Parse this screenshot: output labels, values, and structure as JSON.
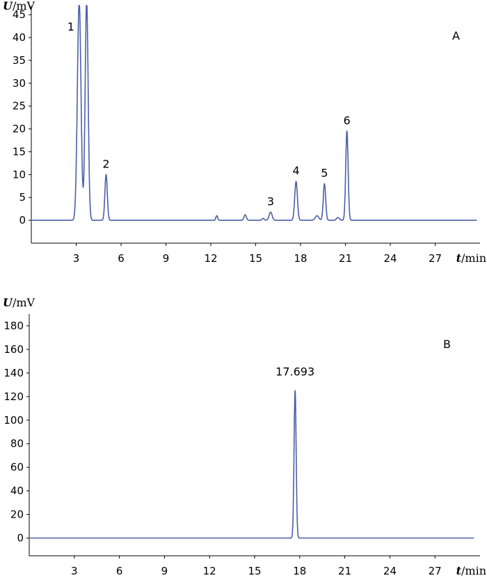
{
  "colors": {
    "trace": "#4a5fa6",
    "axis": "#000000"
  },
  "chart_data": [
    {
      "type": "line",
      "panel_label": "A",
      "ylabel_var": "U",
      "ylabel_unit": "/mV",
      "xlabel_var": "t",
      "xlabel_unit": "/min",
      "xlim": [
        0,
        30
      ],
      "ylim": [
        -5,
        47
      ],
      "x_ticks": [
        3,
        6,
        9,
        12,
        15,
        18,
        21,
        24,
        27
      ],
      "y_ticks": [
        0,
        5,
        10,
        15,
        20,
        25,
        30,
        35,
        40,
        45
      ],
      "peaks": [
        {
          "label": "1",
          "x": 3.2,
          "y": 48,
          "width": 0.12
        },
        {
          "label": "",
          "x": 3.7,
          "y": 48,
          "width": 0.1
        },
        {
          "label": "2",
          "x": 5.0,
          "y": 10,
          "width": 0.08
        },
        {
          "label": "",
          "x": 12.4,
          "y": 1,
          "width": 0.06
        },
        {
          "label": "",
          "x": 14.3,
          "y": 1.2,
          "width": 0.08
        },
        {
          "label": "",
          "x": 15.5,
          "y": 0.4,
          "width": 0.08
        },
        {
          "label": "3",
          "x": 16.0,
          "y": 1.8,
          "width": 0.1
        },
        {
          "label": "4",
          "x": 17.7,
          "y": 8.5,
          "width": 0.09
        },
        {
          "label": "",
          "x": 19.1,
          "y": 1,
          "width": 0.12
        },
        {
          "label": "5",
          "x": 19.6,
          "y": 8,
          "width": 0.08
        },
        {
          "label": "",
          "x": 20.5,
          "y": 0.6,
          "width": 0.1
        },
        {
          "label": "6",
          "x": 21.1,
          "y": 19.5,
          "width": 0.08
        }
      ],
      "trace_end": 29.8
    },
    {
      "type": "line",
      "panel_label": "B",
      "ylabel_var": "U",
      "ylabel_unit": "/mV",
      "xlabel_var": "t",
      "xlabel_unit": "/min",
      "xlim": [
        0,
        30
      ],
      "ylim": [
        -15,
        190
      ],
      "x_ticks": [
        3,
        6,
        9,
        12,
        15,
        18,
        21,
        24,
        27
      ],
      "y_ticks": [
        0,
        20,
        40,
        60,
        80,
        100,
        120,
        140,
        160,
        180
      ],
      "peaks": [
        {
          "label": "17.693",
          "x": 17.693,
          "y": 125,
          "width": 0.07
        }
      ],
      "trace_end": 29.6
    }
  ]
}
